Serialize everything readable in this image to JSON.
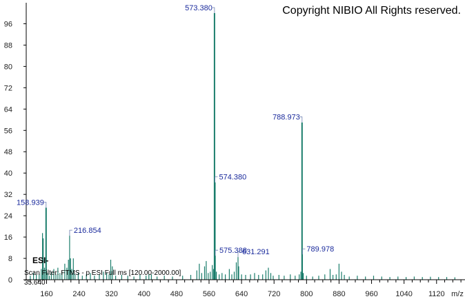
{
  "copyright": "Copyright NIBIO All Rights reserved.",
  "ionization_label": "ESI-",
  "scan_filter": "Scan Filter: FTMS - p ESI Full ms [120.00-2000.00]",
  "retention_time": "35.640",
  "colors": {
    "peak": "#1a7d6b",
    "label": "#1a2a9c",
    "axis": "#000000"
  },
  "chart_data": {
    "type": "bar",
    "title": "",
    "xlabel": "m/z",
    "ylabel": "",
    "xlim": [
      110,
      1190
    ],
    "ylim": [
      0,
      100
    ],
    "x_ticks": [
      160,
      240,
      320,
      400,
      480,
      560,
      640,
      720,
      800,
      880,
      960,
      1040,
      1120
    ],
    "y_ticks": [
      0,
      8,
      16,
      24,
      32,
      40,
      48,
      56,
      64,
      72,
      80,
      88,
      96
    ],
    "grid": false,
    "labeled_peaks": [
      {
        "mz": 158.939,
        "intensity": 27,
        "label": "158.939"
      },
      {
        "mz": 216.854,
        "intensity": 16.5,
        "label": "216.854"
      },
      {
        "mz": 573.38,
        "intensity": 100,
        "label": "573.380"
      },
      {
        "mz": 574.38,
        "intensity": 36.5,
        "label": "574.380"
      },
      {
        "mz": 575.388,
        "intensity": 9,
        "label": "575.388"
      },
      {
        "mz": 631.291,
        "intensity": 8.5,
        "label": "631.291"
      },
      {
        "mz": 788.973,
        "intensity": 59,
        "label": "788.973"
      },
      {
        "mz": 789.978,
        "intensity": 9.5,
        "label": "789.978"
      }
    ],
    "peaks": [
      [
        120,
        1.5
      ],
      [
        128,
        2.5
      ],
      [
        135,
        1.8
      ],
      [
        142,
        2.2
      ],
      [
        147,
        4
      ],
      [
        150,
        17.5
      ],
      [
        152,
        15.5
      ],
      [
        155,
        4.5
      ],
      [
        158.939,
        27
      ],
      [
        163,
        2.5
      ],
      [
        167,
        1.5
      ],
      [
        172,
        3
      ],
      [
        178,
        4
      ],
      [
        183,
        2
      ],
      [
        188,
        4.5
      ],
      [
        193,
        2.5
      ],
      [
        198,
        3
      ],
      [
        205,
        6
      ],
      [
        210,
        4.5
      ],
      [
        214,
        7.5
      ],
      [
        216.854,
        16.5
      ],
      [
        219,
        8
      ],
      [
        222,
        4
      ],
      [
        226,
        8
      ],
      [
        230,
        2
      ],
      [
        238,
        2.5
      ],
      [
        248,
        1.5
      ],
      [
        258,
        2
      ],
      [
        268,
        2.5
      ],
      [
        278,
        1.5
      ],
      [
        290,
        2
      ],
      [
        300,
        3
      ],
      [
        308,
        2.5
      ],
      [
        314,
        2
      ],
      [
        318,
        7.5
      ],
      [
        322,
        5
      ],
      [
        330,
        1.5
      ],
      [
        345,
        1.8
      ],
      [
        360,
        1.5
      ],
      [
        375,
        1.2
      ],
      [
        390,
        1.8
      ],
      [
        405,
        1.5
      ],
      [
        412,
        2
      ],
      [
        418,
        2
      ],
      [
        432,
        1.2
      ],
      [
        450,
        1.5
      ],
      [
        470,
        1.2
      ],
      [
        495,
        1.5
      ],
      [
        515,
        1.8
      ],
      [
        530,
        3.5
      ],
      [
        536,
        6
      ],
      [
        542,
        2.5
      ],
      [
        549,
        5
      ],
      [
        553,
        7
      ],
      [
        558,
        2.5
      ],
      [
        563,
        3
      ],
      [
        568,
        5.5
      ],
      [
        571,
        4
      ],
      [
        573.38,
        100
      ],
      [
        574.38,
        36.5
      ],
      [
        575.388,
        9
      ],
      [
        578,
        3
      ],
      [
        585,
        2
      ],
      [
        592,
        2.5
      ],
      [
        600,
        2
      ],
      [
        610,
        4
      ],
      [
        616,
        2
      ],
      [
        622,
        3
      ],
      [
        627,
        6.5
      ],
      [
        631.291,
        8.5
      ],
      [
        633,
        5
      ],
      [
        640,
        2
      ],
      [
        650,
        1.8
      ],
      [
        662,
        2
      ],
      [
        672,
        2.5
      ],
      [
        682,
        1.8
      ],
      [
        692,
        2
      ],
      [
        700,
        3.5
      ],
      [
        706,
        4.5
      ],
      [
        712,
        2.5
      ],
      [
        718,
        1.5
      ],
      [
        732,
        1.8
      ],
      [
        745,
        1.5
      ],
      [
        760,
        2
      ],
      [
        772,
        1.5
      ],
      [
        782,
        2
      ],
      [
        786,
        3
      ],
      [
        788.973,
        59
      ],
      [
        789.978,
        9.5
      ],
      [
        792,
        2.5
      ],
      [
        800,
        1.5
      ],
      [
        815,
        1.2
      ],
      [
        830,
        1.5
      ],
      [
        845,
        2
      ],
      [
        858,
        4
      ],
      [
        865,
        1.8
      ],
      [
        873,
        2
      ],
      [
        880,
        6
      ],
      [
        886,
        3
      ],
      [
        893,
        1.8
      ],
      [
        905,
        1.2
      ],
      [
        925,
        1.5
      ],
      [
        945,
        1.2
      ],
      [
        965,
        1.5
      ],
      [
        985,
        1.2
      ],
      [
        1005,
        1
      ],
      [
        1025,
        1.2
      ],
      [
        1045,
        1
      ],
      [
        1065,
        1.2
      ],
      [
        1085,
        1
      ],
      [
        1105,
        1.1
      ],
      [
        1125,
        1
      ],
      [
        1145,
        1
      ],
      [
        1165,
        0.9
      ]
    ]
  }
}
